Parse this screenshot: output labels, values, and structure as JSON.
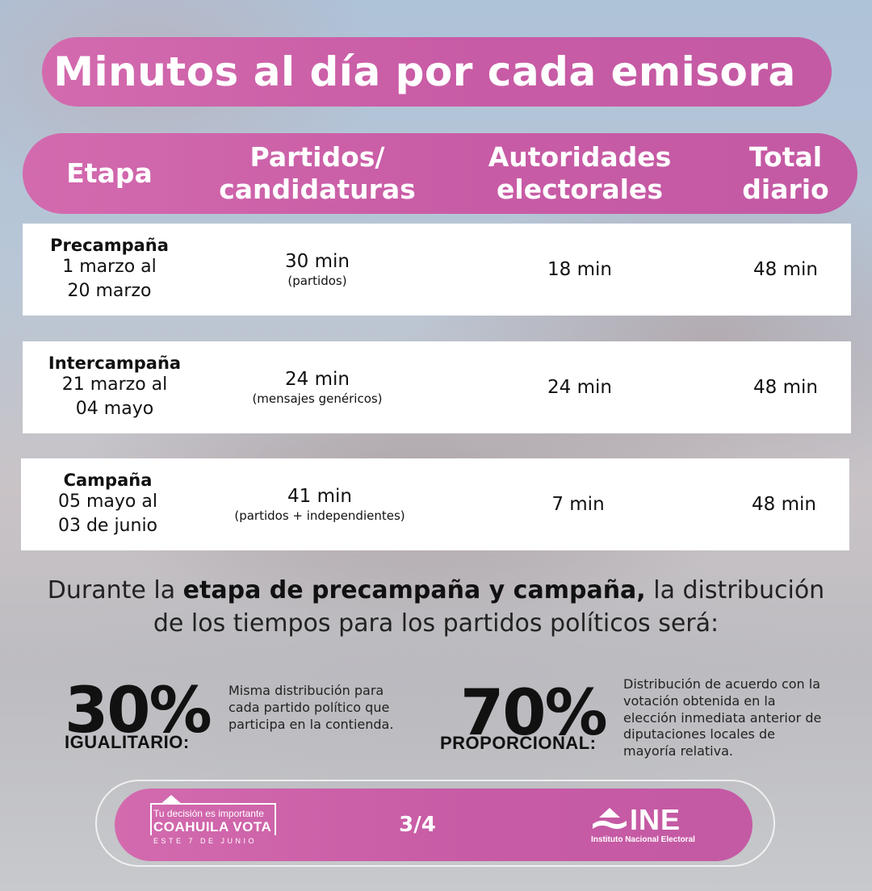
{
  "title": "Minutos al día por cada emisora",
  "headers": {
    "stage": "Etapa",
    "parties": "Partidos/\ncandidaturas",
    "authorities": "Autoridades\nelectorales",
    "total": "Total\ndiario"
  },
  "rows": [
    {
      "stage": "Precampaña",
      "dates": "1 marzo al\n20 marzo",
      "parties": "30 min",
      "parties_note": "(partidos)",
      "authorities": "18 min",
      "total": "48 min"
    },
    {
      "stage": "Intercampaña",
      "dates": "21 marzo al\n04 mayo",
      "parties": "24 min",
      "parties_note": "(mensajes genéricos)",
      "authorities": "24 min",
      "total": "48 min"
    },
    {
      "stage": "Campaña",
      "dates": "05 mayo al\n03 de junio",
      "parties": "41 min",
      "parties_note": "(partidos + independientes)",
      "authorities": "7 min",
      "total": "48 min"
    }
  ],
  "distribution": {
    "intro_pre": "Durante la ",
    "intro_bold": "etapa de precampaña y campaña,",
    "intro_post": " la distribución de los tiempos para los partidos políticos será:",
    "equal": {
      "percent": "30%",
      "label": "IGUALITARIO:",
      "text": "Misma distribución para cada partido político que participa en la contienda."
    },
    "proportional": {
      "percent": "70%",
      "label": "PROPORCIONAL:",
      "text": "Distribución de acuerdo con la votación obtenida en la elección inmediata anterior de diputaciones locales de mayoría relativa."
    }
  },
  "footer": {
    "logo_small": "Tu decisión es importante",
    "logo_big": "COAHUILA VOTA",
    "logo_date": "ESTE 7 DE JUNIO",
    "page": "3/4",
    "ine": "INE",
    "ine_sub": "Instituto Nacional Electoral"
  },
  "colors": {
    "accent": "#cf63a9",
    "row_bg": "#ffffff"
  }
}
